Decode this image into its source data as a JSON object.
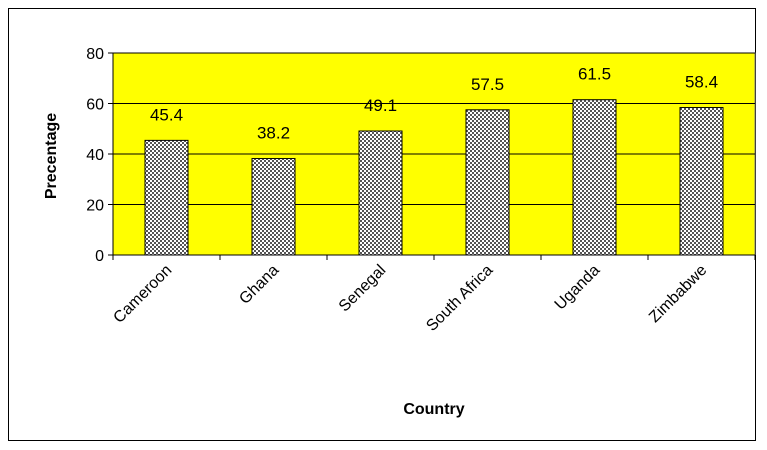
{
  "chart_data": {
    "type": "bar",
    "categories": [
      "Cameroon",
      "Ghana",
      "Senegal",
      "South Africa",
      "Uganda",
      "Zimbabwe"
    ],
    "values": [
      45.4,
      38.2,
      49.1,
      57.5,
      61.5,
      58.4
    ],
    "data_labels": [
      "45.4",
      "38.2",
      "49.1",
      "57.5",
      "61.5",
      "58.4"
    ],
    "title": "",
    "xlabel": "Country",
    "ylabel": "Precentage",
    "ylim": [
      0,
      80
    ],
    "yticks": [
      0,
      20,
      40,
      60,
      80
    ],
    "ytick_labels": [
      "0",
      "20",
      "40",
      "60",
      "80"
    ],
    "grid": true,
    "legend": "none",
    "colors": {
      "plot_background": "#ffff00",
      "bar_fill_pattern": "checkered-dots",
      "bar_fill_light": "#ffffff",
      "bar_fill_dark": "#555555",
      "gridline": "#000000"
    }
  }
}
